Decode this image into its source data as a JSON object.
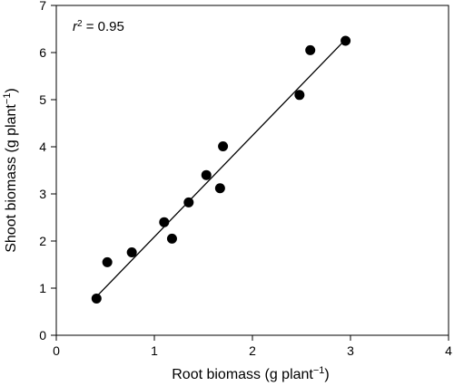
{
  "chart_data": {
    "type": "scatter",
    "xlabel": {
      "main": "Root biomass (g plant",
      "sup": "−1",
      "close": ")"
    },
    "ylabel": {
      "main": "Shoot biomass (g plant",
      "sup": "−1",
      "close": ")"
    },
    "xlim": [
      0,
      4
    ],
    "ylim": [
      0,
      7
    ],
    "xticks": [
      "0",
      "1",
      "2",
      "3",
      "4"
    ],
    "yticks": [
      "0",
      "1",
      "2",
      "3",
      "4",
      "5",
      "6",
      "7"
    ],
    "grid": false,
    "annotation": {
      "var": "r",
      "sup": "2",
      "text": " = 0.95"
    },
    "points": [
      {
        "x": 0.41,
        "y": 0.78
      },
      {
        "x": 0.52,
        "y": 1.55
      },
      {
        "x": 0.77,
        "y": 1.76
      },
      {
        "x": 1.1,
        "y": 2.4
      },
      {
        "x": 1.18,
        "y": 2.05
      },
      {
        "x": 1.35,
        "y": 2.82
      },
      {
        "x": 1.53,
        "y": 3.4
      },
      {
        "x": 1.67,
        "y": 3.12
      },
      {
        "x": 1.7,
        "y": 4.01
      },
      {
        "x": 2.48,
        "y": 5.1
      },
      {
        "x": 2.59,
        "y": 6.05
      },
      {
        "x": 2.95,
        "y": 6.25
      }
    ],
    "fit_line": {
      "x": [
        0.41,
        2.95
      ],
      "y": [
        0.82,
        6.28
      ]
    },
    "marker_color": "#000000",
    "line_color": "#000000"
  }
}
